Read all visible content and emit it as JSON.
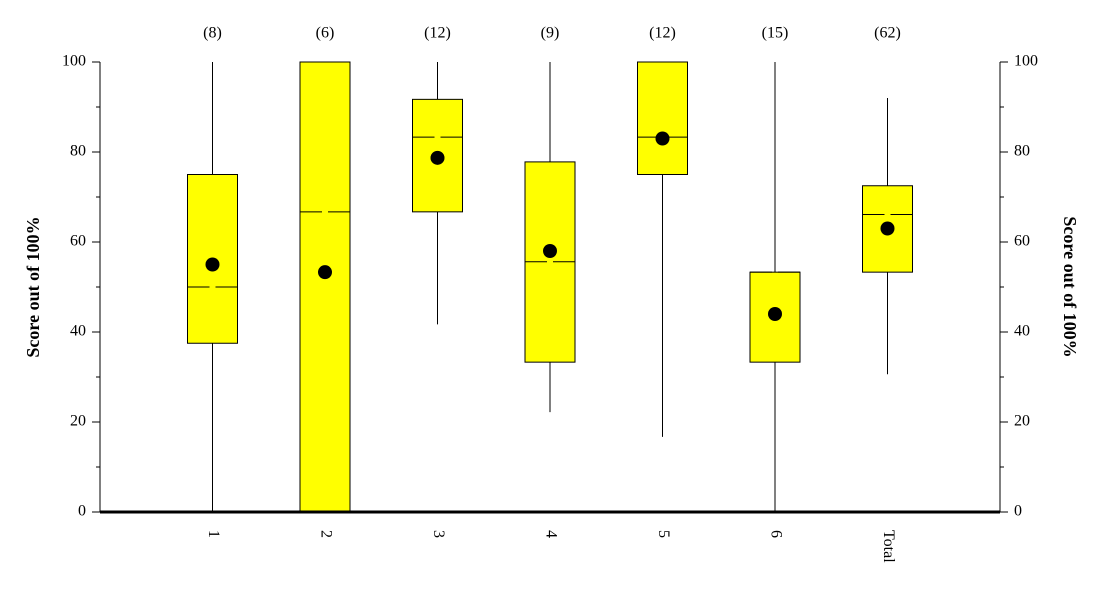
{
  "chart_data": {
    "type": "box",
    "y_label": "Score out of 100%",
    "y2_label": "Score out of 100%",
    "categories": [
      "1",
      "2",
      "3",
      "4",
      "5",
      "6",
      "Total"
    ],
    "count_labels": [
      "(8)",
      "(6)",
      "(12)",
      "(9)",
      "(12)",
      "(15)",
      "(62)"
    ],
    "color": "#ffff00",
    "series": [
      {
        "low": [
          0,
          0,
          41.7,
          22.2,
          16.7,
          0,
          30.6
        ],
        "q1": [
          37.5,
          0,
          66.7,
          33.3,
          75,
          33.3,
          53.3
        ],
        "median": [
          50,
          66.7,
          83.3,
          55.6,
          83.3,
          53.3,
          66.1
        ],
        "q3": [
          75,
          100,
          91.7,
          77.8,
          100,
          53.3,
          72.5
        ],
        "high": [
          100,
          100,
          100,
          100,
          100,
          100,
          92
        ],
        "mean": [
          55,
          53.3,
          78.7,
          58,
          83,
          44,
          63
        ]
      }
    ],
    "xlim": [
      0,
      8
    ],
    "ylim": [
      0,
      100
    ],
    "yticks": [
      0,
      20,
      40,
      60,
      80,
      100
    ],
    "yminorticks": [
      10,
      30,
      50,
      70,
      90
    ],
    "y2lim": [
      0,
      100
    ],
    "y2ticks": [
      0,
      20,
      40,
      60,
      80,
      100
    ],
    "y2minorticks": [
      10,
      30,
      50,
      70,
      90
    ]
  }
}
